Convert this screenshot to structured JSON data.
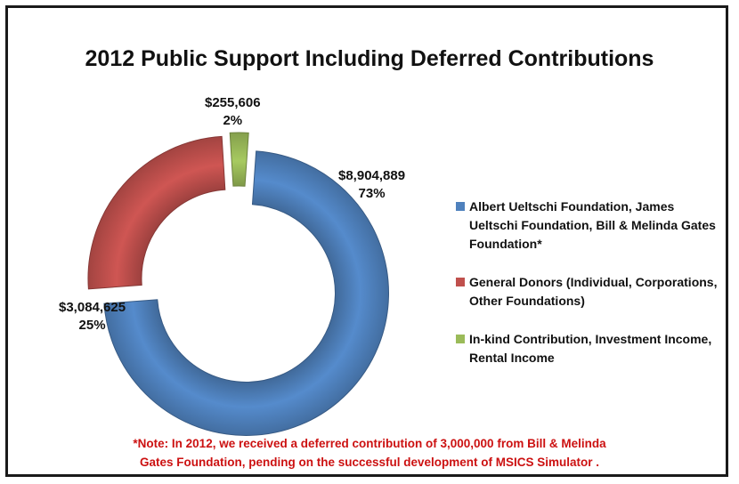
{
  "chart_data": {
    "type": "pie",
    "style": "doughnut, exploded",
    "title": "2012 Public Support Including Deferred  Contributions",
    "slices": [
      {
        "label": "Albert Ueltschi Foundation, James Ueltschi Foundation, Bill & Melinda Gates Foundation*",
        "value": 8904889,
        "value_label": "$8,904,889",
        "percent_label": "73%",
        "color": "#4f81bd"
      },
      {
        "label": "General Donors (Individual, Corporations, Other Foundations)",
        "value": 3084625,
        "value_label": "$3,084,625",
        "percent_label": "25%",
        "color": "#c0504d"
      },
      {
        "label": "In-kind Contribution, Investment Income, Rental Income",
        "value": 255606,
        "value_label": "$255,606",
        "percent_label": "2%",
        "color": "#9bbb59"
      }
    ],
    "legend_position": "right"
  },
  "note": {
    "line1": "*Note: In 2012, we  received a deferred contribution of 3,000,000 from Bill & Melinda",
    "line2": "Gates Foundation, pending on the successful development of MSICS Simulator ."
  }
}
